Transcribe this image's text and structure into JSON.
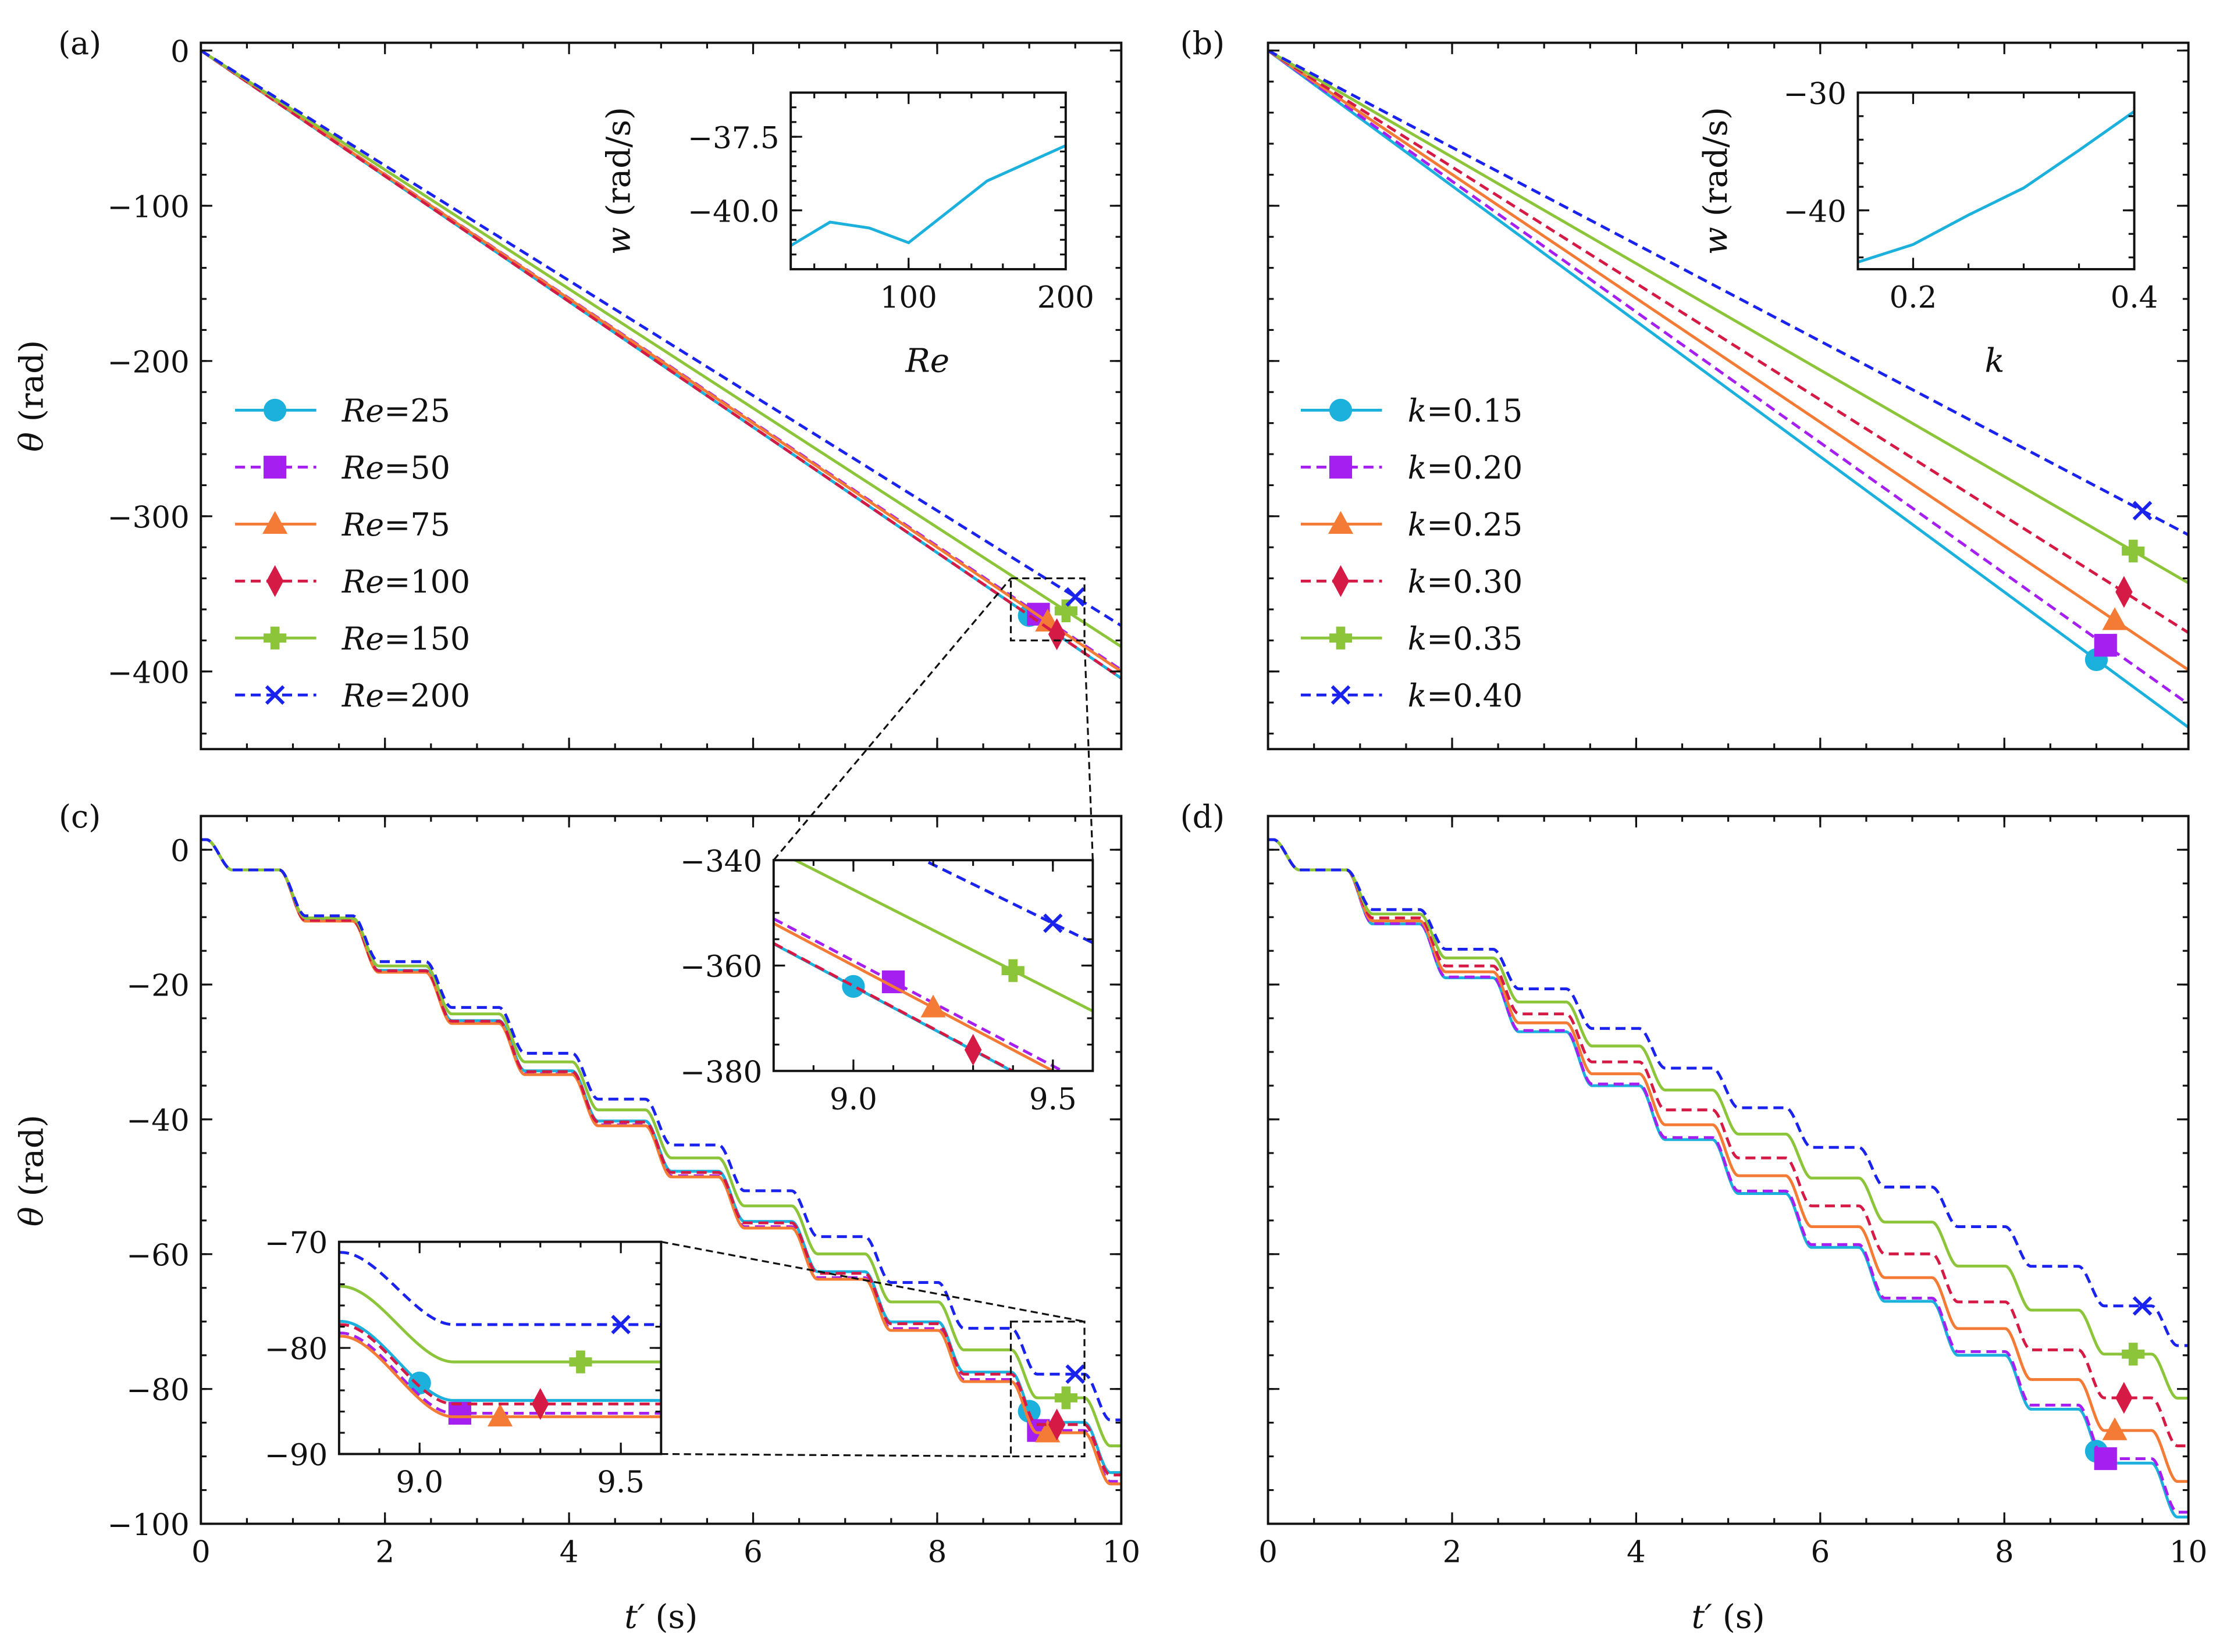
{
  "figure": {
    "panel_labels": [
      "(a)",
      "(b)",
      "(c)",
      "(d)"
    ]
  },
  "chart_data": [
    {
      "id": "a",
      "type": "line",
      "xlabel": "",
      "ylabel": "θ (rad)",
      "xlim": [
        0,
        10
      ],
      "ylim": [
        -450,
        5
      ],
      "xticks": [
        0,
        2,
        4,
        6,
        8,
        10
      ],
      "xticklabels": [],
      "yticks": [
        0,
        -100,
        -200,
        -300,
        -400
      ],
      "yticklabels": [
        "0",
        "−100",
        "−200",
        "−300",
        "−400"
      ],
      "model": "linear",
      "legend": "left",
      "series": [
        {
          "name": "Re=25",
          "rate": -40.44,
          "marker_t": 9.0,
          "color": "#1cb0dc",
          "line_style": "solid",
          "marker": "circle"
        },
        {
          "name": "Re=50",
          "rate": -39.9,
          "marker_t": 9.1,
          "color": "#a41ff0",
          "line_style": "dashed",
          "marker": "square"
        },
        {
          "name": "Re=75",
          "rate": -40.0,
          "marker_t": 9.2,
          "color": "#f47b35",
          "line_style": "solid",
          "marker": "triangle"
        },
        {
          "name": "Re=100",
          "rate": -40.43,
          "marker_t": 9.3,
          "color": "#d41a45",
          "line_style": "dashed",
          "marker": "diamond"
        },
        {
          "name": "Re=150",
          "rate": -38.4,
          "marker_t": 9.4,
          "color": "#8cc43a",
          "line_style": "solid",
          "marker": "plus"
        },
        {
          "name": "Re=200",
          "rate": -37.05,
          "marker_t": 9.5,
          "color": "#1a22ee",
          "line_style": "dashed",
          "marker": "x"
        }
      ]
    },
    {
      "id": "b",
      "type": "line",
      "xlabel": "",
      "ylabel": "",
      "xlim": [
        0,
        10
      ],
      "ylim": [
        -450,
        5
      ],
      "xticks": [
        0,
        2,
        4,
        6,
        8,
        10
      ],
      "xticklabels": [],
      "yticks": [
        0,
        -100,
        -200,
        -300,
        -400
      ],
      "yticklabels": [],
      "model": "linear",
      "legend": "left",
      "series": [
        {
          "name": "k=0.15",
          "rate": -43.6,
          "marker_t": 9.0,
          "color": "#1cb0dc",
          "line_style": "solid",
          "marker": "circle"
        },
        {
          "name": "k=0.20",
          "rate": -42.1,
          "marker_t": 9.1,
          "color": "#a41ff0",
          "line_style": "dashed",
          "marker": "square"
        },
        {
          "name": "k=0.25",
          "rate": -39.9,
          "marker_t": 9.2,
          "color": "#f47b35",
          "line_style": "solid",
          "marker": "triangle"
        },
        {
          "name": "k=0.30",
          "rate": -37.5,
          "marker_t": 9.3,
          "color": "#d41a45",
          "line_style": "dashed",
          "marker": "diamond"
        },
        {
          "name": "k=0.35",
          "rate": -34.3,
          "marker_t": 9.4,
          "color": "#8cc43a",
          "line_style": "solid",
          "marker": "plus"
        },
        {
          "name": "k=0.40",
          "rate": -31.2,
          "marker_t": 9.5,
          "color": "#1a22ee",
          "line_style": "dashed",
          "marker": "x"
        }
      ]
    },
    {
      "id": "c",
      "type": "line",
      "xlabel": "t′ (s)",
      "ylabel": "θ (rad)",
      "xlim": [
        0,
        10
      ],
      "ylim": [
        -100,
        5
      ],
      "xticks": [
        0,
        2,
        4,
        6,
        8,
        10
      ],
      "xticklabels": [
        "0",
        "2",
        "4",
        "6",
        "8",
        "10"
      ],
      "yticks": [
        0,
        -20,
        -40,
        -60,
        -80,
        -100
      ],
      "yticklabels": [
        "0",
        "−20",
        "−40",
        "−60",
        "−80",
        "−100"
      ],
      "model": "staircase",
      "theta_start": 1.5,
      "first_drop": 4.5,
      "step_period": 0.795,
      "first_step_time": 0.2,
      "series": [
        {
          "name": "Re=25",
          "step_drop": 7.45,
          "marker_t": 9.0,
          "color": "#1cb0dc",
          "line_style": "solid",
          "marker": "circle"
        },
        {
          "name": "Re=50",
          "step_drop": 7.56,
          "marker_t": 9.1,
          "color": "#a41ff0",
          "line_style": "dashed",
          "marker": "square"
        },
        {
          "name": "Re=75",
          "step_drop": 7.59,
          "marker_t": 9.2,
          "color": "#f47b35",
          "line_style": "solid",
          "marker": "triangle"
        },
        {
          "name": "Re=100",
          "step_drop": 7.48,
          "marker_t": 9.3,
          "color": "#d41a45",
          "line_style": "dashed",
          "marker": "diamond"
        },
        {
          "name": "Re=150",
          "step_drop": 7.12,
          "marker_t": 9.4,
          "color": "#8cc43a",
          "line_style": "solid",
          "marker": "plus"
        },
        {
          "name": "Re=200",
          "step_drop": 6.8,
          "marker_t": 9.5,
          "color": "#1a22ee",
          "line_style": "dashed",
          "marker": "x"
        }
      ]
    },
    {
      "id": "d",
      "type": "line",
      "xlabel": "t′ (s)",
      "ylabel": "",
      "xlim": [
        0,
        10
      ],
      "ylim": [
        -100,
        5
      ],
      "xticks": [
        0,
        2,
        4,
        6,
        8,
        10
      ],
      "xticklabels": [
        "0",
        "2",
        "4",
        "6",
        "8",
        "10"
      ],
      "yticks": [
        0,
        -20,
        -40,
        -60,
        -80,
        -100
      ],
      "yticklabels": [],
      "model": "staircase",
      "theta_start": 1.5,
      "first_drop": 4.5,
      "step_period": 0.795,
      "first_step_time": 0.2,
      "series": [
        {
          "name": "k=0.15",
          "step_drop": 8.0,
          "marker_t": 9.0,
          "color": "#1cb0dc",
          "line_style": "solid",
          "marker": "circle"
        },
        {
          "name": "k=0.20",
          "step_drop": 7.94,
          "marker_t": 9.1,
          "color": "#a41ff0",
          "line_style": "dashed",
          "marker": "square"
        },
        {
          "name": "k=0.25",
          "step_drop": 7.56,
          "marker_t": 9.2,
          "color": "#f47b35",
          "line_style": "solid",
          "marker": "triangle"
        },
        {
          "name": "k=0.30",
          "step_drop": 7.12,
          "marker_t": 9.3,
          "color": "#d41a45",
          "line_style": "dashed",
          "marker": "diamond"
        },
        {
          "name": "k=0.35",
          "step_drop": 6.53,
          "marker_t": 9.4,
          "color": "#8cc43a",
          "line_style": "solid",
          "marker": "plus"
        },
        {
          "name": "k=0.40",
          "step_drop": 5.88,
          "marker_t": 9.5,
          "color": "#1a22ee",
          "line_style": "dashed",
          "marker": "x"
        }
      ]
    },
    {
      "id": "a_inset",
      "type": "line",
      "xlabel": "Re",
      "ylabel": "w (rad/s)",
      "xlim": [
        25,
        200
      ],
      "ylim": [
        -42,
        -36
      ],
      "xticks": [
        100,
        200
      ],
      "xticklabels": [
        "100",
        "200"
      ],
      "xminor": 20,
      "yticks": [
        -37.5,
        -40
      ],
      "yticklabels": [
        "−37.5",
        "−40.0"
      ],
      "yminor": 0.5,
      "x": [
        25,
        50,
        75,
        100,
        150,
        200
      ],
      "y": [
        -41.2,
        -40.4,
        -40.6,
        -41.1,
        -39.0,
        -37.8
      ],
      "color": "#1cb0dc"
    },
    {
      "id": "b_inset",
      "type": "line",
      "xlabel": "k",
      "ylabel": "w (rad/s)",
      "xlim": [
        0.15,
        0.4
      ],
      "ylim": [
        -45,
        -30
      ],
      "xticks": [
        0.2,
        0.4
      ],
      "xticklabels": [
        "0.2",
        "0.4"
      ],
      "xminor": 0.05,
      "yticks": [
        -30,
        -40
      ],
      "yticklabels": [
        "−30",
        "−40"
      ],
      "yminor": 2,
      "x": [
        0.15,
        0.2,
        0.25,
        0.3,
        0.35,
        0.4
      ],
      "y": [
        -44.4,
        -42.9,
        -40.4,
        -38.1,
        -34.9,
        -31.6
      ],
      "color": "#1cb0dc"
    },
    {
      "id": "zoom_a",
      "type": "line",
      "source": "a",
      "xlabel": "",
      "ylabel": "",
      "xlim": [
        8.8,
        9.6
      ],
      "ylim": [
        -380,
        -340
      ],
      "xticks": [
        9.0,
        9.5
      ],
      "xticklabels": [
        "9.0",
        "9.5"
      ],
      "xminor": 0.1,
      "yticks": [
        -340,
        -360,
        -380
      ],
      "yticklabels": [
        "−340",
        "−360",
        "−380"
      ],
      "yminor": 5
    },
    {
      "id": "zoom_c",
      "type": "line",
      "source": "c",
      "xlabel": "",
      "ylabel": "",
      "xlim": [
        8.8,
        9.6
      ],
      "ylim": [
        -90,
        -70
      ],
      "xticks": [
        9.0,
        9.5
      ],
      "xticklabels": [
        "9.0",
        "9.5"
      ],
      "xminor": 0.1,
      "yticks": [
        -70,
        -80,
        -90
      ],
      "yticklabels": [
        "−70",
        "−80",
        "−90"
      ],
      "yminor": 2
    }
  ]
}
